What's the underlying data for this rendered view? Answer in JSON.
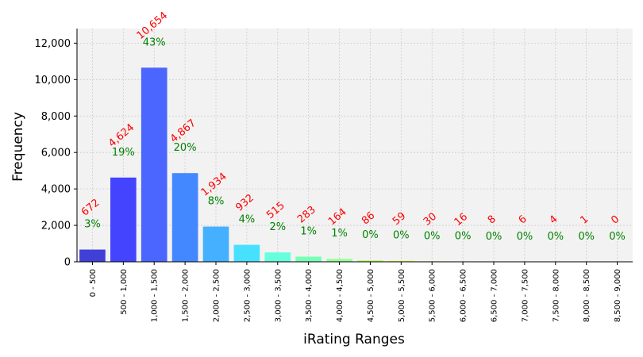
{
  "chart_data": {
    "type": "bar",
    "xlabel": "iRating Ranges",
    "ylabel": "Frequency",
    "ylim": [
      0,
      12800
    ],
    "yticks": [
      0,
      2000,
      4000,
      6000,
      8000,
      10000,
      12000
    ],
    "ytick_labels": [
      "0",
      "2,000",
      "4,000",
      "6,000",
      "8,000",
      "10,000",
      "12,000"
    ],
    "grid": true,
    "categories": [
      "0 - 500",
      "500 - 1,000",
      "1,000 - 1,500",
      "1,500 - 2,000",
      "2,000 - 2,500",
      "2,500 - 3,000",
      "3,000 - 3,500",
      "3,500 - 4,000",
      "4,000 - 4,500",
      "4,500 - 5,000",
      "5,000 - 5,500",
      "5,500 - 6,000",
      "6,000 - 6,500",
      "6,500 - 7,000",
      "7,000 - 7,500",
      "7,500 - 8,000",
      "8,000 - 8,500",
      "8,500 - 9,000"
    ],
    "values": [
      672,
      4624,
      10654,
      4867,
      1934,
      932,
      515,
      283,
      164,
      86,
      59,
      30,
      16,
      8,
      6,
      4,
      1,
      0
    ],
    "count_labels": [
      "672",
      "4,624",
      "10,654",
      "4,867",
      "1,934",
      "932",
      "515",
      "283",
      "164",
      "86",
      "59",
      "30",
      "16",
      "8",
      "6",
      "4",
      "1",
      "0"
    ],
    "percent_labels": [
      "3%",
      "19%",
      "43%",
      "20%",
      "8%",
      "4%",
      "2%",
      "1%",
      "1%",
      "0%",
      "0%",
      "0%",
      "0%",
      "0%",
      "0%",
      "0%",
      "0%",
      "0%"
    ],
    "bar_colors": [
      "#4040d8",
      "#4444ff",
      "#4a66ff",
      "#4488ff",
      "#44b0ff",
      "#48e0ff",
      "#66ffdd",
      "#77ffb8",
      "#99ff99",
      "#bbff77",
      "#ddff66",
      "#ffff55",
      "#ffe044",
      "#ffcc44",
      "#ffaa33",
      "#ff8833",
      "#ff6622",
      "#ff4422"
    ],
    "plot_background": "#f2f2f2",
    "count_label_color": "#ff0000",
    "percent_label_color": "#008000"
  }
}
